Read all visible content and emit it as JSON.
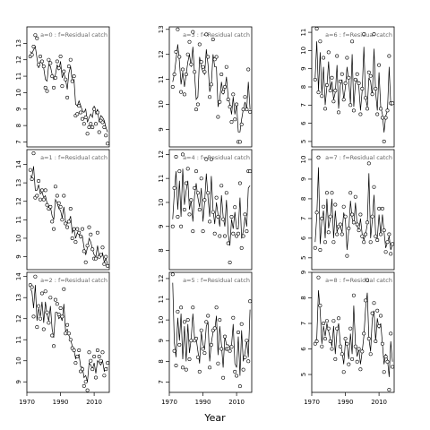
{
  "chart_data": {
    "type": "line",
    "xlabel": "Year",
    "x_ticks": [
      "1970",
      "1990",
      "2010"
    ],
    "years": [
      1972,
      1973,
      1974,
      1975,
      1976,
      1977,
      1978,
      1979,
      1980,
      1981,
      1982,
      1983,
      1984,
      1985,
      1986,
      1987,
      1988,
      1989,
      1990,
      1991,
      1992,
      1993,
      1994,
      1995,
      1996,
      1997,
      1998,
      1999,
      2000,
      2001,
      2002,
      2003,
      2004,
      2005,
      2006,
      2007,
      2008,
      2009,
      2010,
      2011,
      2012,
      2013,
      2014,
      2015,
      2016,
      2017,
      2018
    ],
    "xlim": [
      1970,
      2019
    ],
    "panels": [
      {
        "label": "a=0  :  f=Residual catch",
        "ylim": [
          6.7,
          14.0
        ],
        "yticks": [
          "7",
          "8",
          "9",
          "10",
          "11",
          "12",
          "13"
        ],
        "observed": [
          12.2,
          12.3,
          12.8,
          13.5,
          13.3,
          11.7,
          12.2,
          11.9,
          11.6,
          10.3,
          10.1,
          12.0,
          11.8,
          11.0,
          10.3,
          10.9,
          11.9,
          11.5,
          12.2,
          10.4,
          11.3,
          10.8,
          9.7,
          11.6,
          12.0,
          10.7,
          11.0,
          8.6,
          8.7,
          9.2,
          8.8,
          8.4,
          8.1,
          8.5,
          7.5,
          7.9,
          8.1,
          7.9,
          9.0,
          8.1,
          8.8,
          7.6,
          8.3,
          8.2,
          7.9,
          7.4,
          6.9
        ],
        "fitted": [
          12.5,
          12.4,
          12.6,
          12.8,
          12.1,
          11.5,
          11.9,
          11.8,
          11.5,
          10.8,
          10.7,
          11.7,
          11.6,
          11.1,
          10.8,
          11.1,
          11.7,
          11.4,
          11.9,
          10.9,
          11.2,
          10.8,
          10.2,
          11.2,
          11.6,
          10.7,
          10.8,
          9.3,
          9.2,
          9.5,
          9.2,
          8.9,
          8.8,
          9.0,
          8.2,
          8.5,
          8.7,
          8.5,
          9.2,
          8.7,
          9.0,
          8.2,
          8.6,
          8.5,
          8.3,
          7.9,
          7.6
        ]
      },
      {
        "label": "a=1  :  f=Residual catch",
        "ylim": [
          8.3,
          14.8
        ],
        "yticks": [
          "9",
          "10",
          "11",
          "12",
          "13",
          "14"
        ],
        "observed": [
          13.7,
          13.2,
          14.6,
          12.2,
          12.3,
          13.1,
          12.1,
          12.6,
          12.1,
          12.6,
          11.8,
          11.6,
          11.7,
          10.9,
          10.5,
          12.8,
          12.3,
          11.9,
          11.7,
          11.0,
          12.3,
          10.8,
          10.6,
          10.9,
          11.6,
          10.0,
          10.5,
          9.8,
          10.5,
          10.3,
          10.1,
          10.5,
          9.3,
          8.7,
          9.6,
          10.6,
          10.2,
          9.4,
          8.9,
          8.9,
          10.3,
          9.0,
          9.1,
          9.5,
          8.6,
          9.0,
          8.5
        ],
        "fitted": [
          13.4,
          13.3,
          13.9,
          12.6,
          12.6,
          12.9,
          12.4,
          12.5,
          12.2,
          12.3,
          11.9,
          11.7,
          11.7,
          11.2,
          11.0,
          12.1,
          11.9,
          11.6,
          11.5,
          11.1,
          11.7,
          10.9,
          10.8,
          10.9,
          11.2,
          10.3,
          10.5,
          10.0,
          10.3,
          10.2,
          10.0,
          10.1,
          9.5,
          9.1,
          9.5,
          10.0,
          9.8,
          9.4,
          9.1,
          9.0,
          9.6,
          9.0,
          9.0,
          9.2,
          8.7,
          8.9,
          8.6
        ]
      },
      {
        "label": "a=2  :  f=Residual catch",
        "ylim": [
          8.5,
          14.2
        ],
        "yticks": [
          "9",
          "10",
          "11",
          "12",
          "13",
          "14"
        ],
        "observed": [
          13.6,
          13.5,
          12.1,
          14.0,
          11.6,
          12.6,
          12.0,
          13.2,
          11.5,
          13.3,
          12.3,
          11.8,
          13.0,
          11.2,
          10.7,
          12.9,
          12.7,
          12.2,
          12.5,
          12.1,
          13.4,
          11.3,
          11.7,
          11.3,
          11.0,
          10.6,
          10.5,
          9.9,
          10.2,
          10.5,
          9.5,
          9.6,
          8.8,
          9.0,
          8.6,
          10.4,
          10.0,
          9.6,
          10.2,
          9.2,
          10.5,
          10.2,
          10.0,
          10.4,
          9.3,
          9.6,
          9.9
        ],
        "fitted": [
          13.4,
          13.3,
          12.5,
          13.6,
          11.9,
          12.5,
          12.1,
          12.8,
          11.8,
          12.8,
          12.2,
          11.9,
          12.6,
          11.5,
          11.1,
          12.3,
          12.3,
          12.0,
          12.1,
          11.9,
          12.7,
          11.4,
          11.5,
          11.2,
          11.0,
          10.7,
          10.5,
          10.1,
          10.2,
          10.3,
          9.7,
          9.7,
          9.2,
          9.3,
          9.0,
          9.9,
          9.8,
          9.6,
          9.9,
          9.4,
          10.0,
          9.9,
          9.8,
          10.0,
          9.5,
          9.6,
          9.7
        ]
      },
      {
        "label": "a=3  :  f=Residual catch",
        "ylim": [
          8.3,
          13.1
        ],
        "yticks": [
          "9",
          "10",
          "11",
          "12",
          "13"
        ],
        "observed": [
          10.7,
          11.2,
          12.1,
          13.0,
          11.9,
          10.5,
          11.4,
          10.4,
          11.2,
          12.0,
          12.5,
          11.6,
          12.9,
          11.3,
          9.8,
          10.0,
          12.4,
          11.7,
          11.5,
          11.3,
          12.8,
          11.9,
          10.3,
          10.8,
          12.6,
          11.8,
          11.9,
          9.5,
          10.1,
          11.2,
          10.5,
          10.7,
          11.5,
          10.2,
          9.9,
          9.3,
          10.4,
          9.4,
          10.0,
          8.5,
          8.5,
          9.2,
          9.8,
          10.3,
          9.8,
          11.4,
          9.7
        ],
        "fitted": [
          10.9,
          11.2,
          11.8,
          12.4,
          11.7,
          10.8,
          11.3,
          10.7,
          11.2,
          11.7,
          12.0,
          11.5,
          12.3,
          11.2,
          10.2,
          10.3,
          11.9,
          11.5,
          11.3,
          11.2,
          12.2,
          11.6,
          10.5,
          10.8,
          12.0,
          11.5,
          11.5,
          9.9,
          10.2,
          10.9,
          10.4,
          10.6,
          11.1,
          10.3,
          10.0,
          9.6,
          10.3,
          9.6,
          10.0,
          8.9,
          8.9,
          9.4,
          9.8,
          10.1,
          9.8,
          10.9,
          9.8
        ]
      },
      {
        "label": "a=4  :  f=Residual catch",
        "ylim": [
          7.2,
          12.2
        ],
        "yticks": [
          "8",
          "9",
          "10",
          "11",
          "12"
        ],
        "observed": [
          9.0,
          10.6,
          11.9,
          9.4,
          11.3,
          9.0,
          12.0,
          9.7,
          10.8,
          11.4,
          9.5,
          10.1,
          8.8,
          10.6,
          11.3,
          10.4,
          9.7,
          11.0,
          8.8,
          10.1,
          11.8,
          10.4,
          9.2,
          11.8,
          9.6,
          8.7,
          10.2,
          9.4,
          8.6,
          10.7,
          9.3,
          8.6,
          10.4,
          8.3,
          7.5,
          9.4,
          8.7,
          9.8,
          8.6,
          8.7,
          10.8,
          8.1,
          8.6,
          9.5,
          8.8,
          11.3,
          11.3
        ],
        "fitted": [
          9.3,
          10.4,
          11.3,
          9.7,
          10.9,
          9.4,
          11.4,
          9.9,
          10.5,
          10.9,
          9.7,
          10.1,
          9.2,
          10.3,
          10.8,
          10.2,
          9.8,
          10.6,
          9.2,
          10.0,
          11.2,
          10.2,
          9.4,
          11.1,
          9.7,
          9.1,
          10.0,
          9.5,
          9.0,
          10.3,
          9.4,
          9.0,
          10.1,
          8.7,
          8.2,
          9.3,
          8.9,
          9.6,
          8.9,
          8.9,
          10.2,
          8.5,
          8.8,
          9.4,
          9.0,
          10.6,
          10.7
        ]
      },
      {
        "label": "a=5  :  f=Residual catch",
        "ylim": [
          6.5,
          12.3
        ],
        "yticks": [
          "7",
          "8",
          "9",
          "10",
          "11",
          "12"
        ],
        "observed": [
          12.2,
          8.5,
          7.8,
          10.4,
          8.8,
          10.6,
          7.7,
          9.9,
          7.6,
          10.0,
          8.1,
          9.0,
          10.6,
          9.0,
          9.1,
          8.2,
          7.5,
          9.5,
          8.6,
          8.4,
          9.9,
          10.2,
          7.7,
          8.8,
          9.5,
          9.6,
          10.6,
          7.9,
          10.0,
          8.6,
          7.2,
          9.2,
          8.6,
          8.6,
          8.5,
          8.7,
          10.1,
          7.5,
          7.3,
          9.4,
          6.8,
          9.8,
          7.6,
          8.2,
          9.0,
          8.0,
          10.9
        ],
        "fitted": [
          11.8,
          8.9,
          8.2,
          10.1,
          9.0,
          10.3,
          8.1,
          9.7,
          8.0,
          9.8,
          8.4,
          9.1,
          10.3,
          9.1,
          9.1,
          8.5,
          7.9,
          9.4,
          8.8,
          8.6,
          9.7,
          9.9,
          8.0,
          8.9,
          9.4,
          9.5,
          10.2,
          8.3,
          9.7,
          8.8,
          7.7,
          9.2,
          8.8,
          8.8,
          8.7,
          8.8,
          9.8,
          7.9,
          7.7,
          9.2,
          7.3,
          9.5,
          8.0,
          8.4,
          9.0,
          8.2,
          10.5
        ]
      },
      {
        "label": "a=6  :  f=Residual catch",
        "ylim": [
          4.7,
          11.3
        ],
        "yticks": [
          "5",
          "6",
          "7",
          "8",
          "9",
          "10",
          "11"
        ],
        "observed": [
          8.4,
          11.2,
          7.7,
          10.5,
          7.5,
          9.6,
          6.8,
          8.1,
          9.9,
          7.8,
          8.5,
          7.2,
          7.8,
          9.7,
          6.6,
          8.3,
          8.7,
          7.3,
          8.2,
          9.6,
          8.5,
          7.0,
          10.5,
          6.7,
          8.4,
          8.7,
          8.2,
          6.5,
          7.9,
          10.9,
          7.4,
          6.8,
          8.8,
          8.6,
          7.6,
          10.9,
          7.9,
          6.5,
          9.2,
          6.8,
          6.3,
          5.0,
          6.3,
          6.7,
          9.7,
          7.1,
          7.1
        ],
        "fitted": [
          8.5,
          10.5,
          7.8,
          9.9,
          7.6,
          9.1,
          7.0,
          8.0,
          9.4,
          7.8,
          8.3,
          7.3,
          7.7,
          9.2,
          6.8,
          8.1,
          8.4,
          7.3,
          8.0,
          9.1,
          8.3,
          7.1,
          9.8,
          6.9,
          8.2,
          8.4,
          8.0,
          6.7,
          7.8,
          10.2,
          7.4,
          6.9,
          8.5,
          8.3,
          7.5,
          10.1,
          7.7,
          6.7,
          8.8,
          6.9,
          6.5,
          5.5,
          6.4,
          6.7,
          9.1,
          7.0,
          7.0
        ]
      },
      {
        "label": "a=7  :  f=Residual catch",
        "ylim": [
          4.4,
          10.5
        ],
        "yticks": [
          "5",
          "6",
          "7",
          "8",
          "9",
          "10"
        ],
        "observed": [
          5.5,
          7.3,
          10.1,
          5.4,
          7.0,
          7.6,
          5.8,
          8.3,
          6.3,
          7.1,
          8.3,
          5.8,
          7.7,
          6.2,
          6.6,
          6.7,
          6.2,
          7.6,
          7.1,
          5.1,
          6.5,
          8.3,
          7.2,
          6.8,
          8.1,
          6.7,
          6.4,
          7.2,
          6.1,
          5.8,
          6.2,
          6.8,
          9.8,
          5.8,
          7.1,
          8.6,
          6.1,
          5.9,
          7.5,
          6.2,
          7.5,
          6.4,
          5.3,
          5.8,
          6.2,
          5.2,
          5.7
        ],
        "fitted": [
          5.8,
          7.1,
          9.6,
          5.7,
          6.9,
          7.4,
          6.0,
          8.0,
          6.5,
          7.0,
          8.0,
          6.0,
          7.4,
          6.3,
          6.6,
          6.6,
          6.3,
          7.3,
          6.9,
          5.4,
          6.4,
          7.9,
          7.0,
          6.7,
          7.8,
          6.6,
          6.4,
          7.0,
          6.2,
          5.9,
          6.2,
          6.7,
          9.3,
          6.0,
          6.9,
          8.2,
          6.2,
          6.0,
          7.2,
          6.2,
          7.2,
          6.3,
          5.5,
          5.8,
          6.1,
          5.4,
          5.7
        ]
      },
      {
        "label": "a=8  :  f=Residual catch",
        "ylim": [
          4.3,
          9.0
        ],
        "yticks": [
          "5",
          "6",
          "7",
          "8",
          "9"
        ],
        "observed": [
          6.2,
          6.3,
          8.8,
          7.7,
          6.1,
          7.0,
          6.4,
          7.1,
          6.8,
          6.3,
          6.0,
          7.1,
          5.6,
          6.8,
          7.2,
          6.1,
          5.8,
          5.1,
          6.4,
          6.2,
          5.4,
          6.8,
          5.6,
          8.1,
          6.1,
          5.5,
          6.0,
          5.2,
          5.9,
          6.6,
          7.9,
          8.7,
          6.4,
          5.8,
          7.4,
          7.8,
          6.3,
          7.5,
          6.9,
          7.3,
          6.2,
          5.1,
          5.7,
          5.5,
          4.4,
          6.6,
          5.3
        ],
        "fitted": [
          6.3,
          6.4,
          8.3,
          7.5,
          6.2,
          6.9,
          6.5,
          7.0,
          6.7,
          6.4,
          6.1,
          6.9,
          5.8,
          6.7,
          7.0,
          6.2,
          5.9,
          5.4,
          6.3,
          6.2,
          5.6,
          6.6,
          5.8,
          7.7,
          6.2,
          5.7,
          6.0,
          5.4,
          5.9,
          6.5,
          7.6,
          8.2,
          6.4,
          5.9,
          7.2,
          7.5,
          6.3,
          7.2,
          6.8,
          7.0,
          6.2,
          5.4,
          5.8,
          5.6,
          4.9,
          6.3,
          5.5
        ]
      }
    ]
  }
}
